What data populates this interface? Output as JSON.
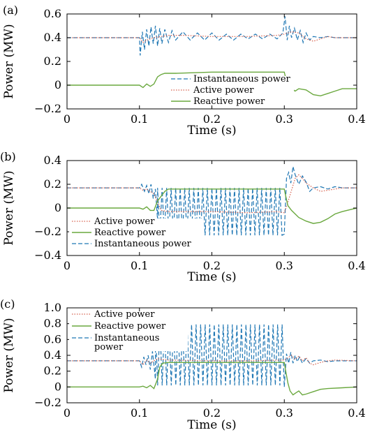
{
  "colors": {
    "instantaneous": "#1f77b4",
    "active": "#d6604d",
    "reactive": "#6aa83e",
    "axis": "#000000"
  },
  "chart_data": [
    {
      "panel_label": "(a)",
      "type": "line",
      "xlabel": "Time (s)",
      "ylabel": "Power (MW)",
      "xlim": [
        0,
        0.4
      ],
      "ylim": [
        -0.2,
        0.6
      ],
      "xticks": [
        0,
        0.1,
        0.2,
        0.3,
        0.4
      ],
      "xtick_labels": [
        "0",
        "0.1",
        "0.2",
        "0.3",
        "0.4"
      ],
      "yticks": [
        -0.2,
        0,
        0.2,
        0.4,
        0.6
      ],
      "ytick_labels": [
        "−0.2",
        "0",
        "0.2",
        "0.4",
        "0.6"
      ],
      "grid": false,
      "legend_position": "center",
      "legend": [
        "Instantaneous power",
        "Active power",
        "Reactive power"
      ],
      "series": [
        {
          "name": "Instantaneous power",
          "style": "dashed",
          "x": [
            0,
            0.1,
            0.101,
            0.104,
            0.107,
            0.11,
            0.113,
            0.116,
            0.119,
            0.122,
            0.125,
            0.128,
            0.131,
            0.135,
            0.14,
            0.145,
            0.15,
            0.16,
            0.17,
            0.18,
            0.19,
            0.2,
            0.21,
            0.22,
            0.23,
            0.24,
            0.25,
            0.26,
            0.27,
            0.28,
            0.29,
            0.298,
            0.301,
            0.304,
            0.307,
            0.31,
            0.314,
            0.318,
            0.322,
            0.326,
            0.33,
            0.335,
            0.34,
            0.35,
            0.36,
            0.37,
            0.4
          ],
          "y": [
            0.4,
            0.4,
            0.25,
            0.45,
            0.3,
            0.47,
            0.33,
            0.49,
            0.35,
            0.5,
            0.33,
            0.48,
            0.35,
            0.47,
            0.36,
            0.46,
            0.38,
            0.45,
            0.38,
            0.44,
            0.38,
            0.44,
            0.38,
            0.43,
            0.38,
            0.43,
            0.39,
            0.43,
            0.39,
            0.43,
            0.39,
            0.44,
            0.58,
            0.38,
            0.5,
            0.4,
            0.48,
            0.38,
            0.46,
            0.36,
            0.44,
            0.38,
            0.41,
            0.4,
            0.41,
            0.4,
            0.4
          ]
        },
        {
          "name": "Active power",
          "style": "dotted",
          "x": [
            0,
            0.1,
            0.105,
            0.11,
            0.115,
            0.12,
            0.13,
            0.14,
            0.16,
            0.2,
            0.25,
            0.29,
            0.3,
            0.31,
            0.32,
            0.33,
            0.34,
            0.35,
            0.36,
            0.37,
            0.4
          ],
          "y": [
            0.4,
            0.4,
            0.36,
            0.38,
            0.39,
            0.4,
            0.41,
            0.42,
            0.42,
            0.41,
            0.41,
            0.42,
            0.43,
            0.45,
            0.44,
            0.39,
            0.37,
            0.39,
            0.41,
            0.4,
            0.4
          ]
        },
        {
          "name": "Reactive power",
          "style": "solid",
          "x": [
            0,
            0.1,
            0.105,
            0.11,
            0.115,
            0.12,
            0.125,
            0.13,
            0.135,
            0.15,
            0.2,
            0.25,
            0.3,
            0.302,
            0.305,
            0.31,
            0.315,
            0.32,
            0.33,
            0.34,
            0.35,
            0.36,
            0.37,
            0.38,
            0.4
          ],
          "y": [
            0,
            0,
            -0.02,
            0.01,
            -0.01,
            0.01,
            0.07,
            0.09,
            0.1,
            0.1,
            0.11,
            0.11,
            0.11,
            0.06,
            0,
            -0.03,
            -0.05,
            -0.03,
            -0.04,
            -0.08,
            -0.09,
            -0.07,
            -0.05,
            -0.03,
            -0.03
          ]
        }
      ]
    },
    {
      "panel_label": "(b)",
      "type": "line",
      "xlabel": "Time (s)",
      "ylabel": "Power (MW)",
      "xlim": [
        0,
        0.4
      ],
      "ylim": [
        -0.4,
        0.4
      ],
      "xticks": [
        0,
        0.1,
        0.2,
        0.3,
        0.4
      ],
      "xtick_labels": [
        "0",
        "0.1",
        "0.2",
        "0.3",
        "0.4"
      ],
      "yticks": [
        -0.4,
        -0.2,
        0,
        0.2,
        0.4
      ],
      "ytick_labels": [
        "−0.4",
        "−0.2",
        "0",
        "0.2",
        "0.4"
      ],
      "grid": false,
      "legend_position": "bottom-left",
      "legend": [
        "Active power",
        "Reactive power",
        "Instantaneous power"
      ],
      "series": [
        {
          "name": "Instantaneous power",
          "style": "dashed",
          "x": [
            0,
            0.1,
            0.103,
            0.107,
            0.11,
            0.113,
            0.116,
            0.119,
            0.122,
            0.125,
            0.3,
            0.303,
            0.306,
            0.309,
            0.312,
            0.315,
            0.32,
            0.325,
            0.33,
            0.335,
            0.34,
            0.35,
            0.36,
            0.37,
            0.38,
            0.4
          ],
          "y": [
            0.17,
            0.17,
            0.2,
            0.14,
            0.19,
            0.12,
            0.2,
            0.08,
            0.16,
            -0.1,
            -0.22,
            0.25,
            0.3,
            0.21,
            0.35,
            0.28,
            0.2,
            0.27,
            0.22,
            0.14,
            0.17,
            0.18,
            0.16,
            0.18,
            0.17,
            0.17
          ],
          "oscillation": {
            "start": 0.125,
            "end": 0.3,
            "period": 0.00625,
            "high": 0.17,
            "low": -0.23
          }
        },
        {
          "name": "Active power",
          "style": "dotted",
          "x": [
            0,
            0.1,
            0.105,
            0.11,
            0.115,
            0.12,
            0.125,
            0.13,
            0.14,
            0.16,
            0.2,
            0.25,
            0.29,
            0.3,
            0.305,
            0.31,
            0.315,
            0.32,
            0.325,
            0.33,
            0.34,
            0.35,
            0.36,
            0.38,
            0.4
          ],
          "y": [
            0.17,
            0.17,
            0.15,
            0.16,
            0.14,
            0.12,
            0.05,
            -0.02,
            -0.03,
            -0.03,
            -0.03,
            -0.04,
            -0.03,
            -0.04,
            0.05,
            0.15,
            0.25,
            0.28,
            0.25,
            0.21,
            0.17,
            0.14,
            0.15,
            0.17,
            0.17
          ]
        },
        {
          "name": "Reactive power",
          "style": "solid",
          "x": [
            0,
            0.1,
            0.105,
            0.11,
            0.115,
            0.12,
            0.125,
            0.13,
            0.135,
            0.14,
            0.15,
            0.2,
            0.25,
            0.3,
            0.302,
            0.305,
            0.31,
            0.315,
            0.32,
            0.33,
            0.34,
            0.35,
            0.36,
            0.37,
            0.38,
            0.4
          ],
          "y": [
            0,
            0,
            -0.01,
            0.01,
            -0.02,
            -0.02,
            0.06,
            0.1,
            0.14,
            0.16,
            0.16,
            0.16,
            0.16,
            0.16,
            0.1,
            0.02,
            -0.02,
            -0.05,
            -0.08,
            -0.11,
            -0.13,
            -0.12,
            -0.09,
            -0.05,
            -0.03,
            0
          ]
        }
      ]
    },
    {
      "panel_label": "(c)",
      "type": "line",
      "xlabel": "Time (s)",
      "ylabel": "Power (MW)",
      "xlim": [
        0,
        0.4
      ],
      "ylim": [
        -0.2,
        1.0
      ],
      "xticks": [
        0,
        0.1,
        0.2,
        0.3,
        0.4
      ],
      "xtick_labels": [
        "0",
        "0.1",
        "0.2",
        "0.3",
        "0.4"
      ],
      "yticks": [
        -0.2,
        0,
        0.2,
        0.4,
        0.6,
        0.8,
        1.0
      ],
      "ytick_labels": [
        "−0.2",
        "0",
        "0.2",
        "0.4",
        "0.6",
        "0.8",
        "1.0"
      ],
      "grid": false,
      "legend_position": "top-left",
      "legend": [
        "Active power",
        "Reactive power",
        "Instantaneous",
        "power"
      ],
      "series": [
        {
          "name": "Instantaneous power",
          "style": "dashed",
          "x": [
            0,
            0.1,
            0.103,
            0.106,
            0.109,
            0.112,
            0.115,
            0.118,
            0.122,
            0.3,
            0.303,
            0.306,
            0.309,
            0.312,
            0.315,
            0.318,
            0.321,
            0.325,
            0.33,
            0.335,
            0.34,
            0.35,
            0.36,
            0.37,
            0.4
          ],
          "y": [
            0.33,
            0.33,
            0.25,
            0.38,
            0.28,
            0.4,
            0.22,
            0.45,
            0.1,
            0.0,
            0.42,
            0.3,
            0.44,
            0.3,
            0.4,
            0.32,
            0.38,
            0.3,
            0.36,
            0.3,
            0.33,
            0.34,
            0.32,
            0.33,
            0.33
          ],
          "oscillation": {
            "start": 0.122,
            "end": 0.3,
            "period": 0.00625,
            "high": 0.79,
            "low": 0.02
          }
        },
        {
          "name": "Active power",
          "style": "dotted",
          "x": [
            0,
            0.1,
            0.105,
            0.11,
            0.115,
            0.12,
            0.125,
            0.13,
            0.14,
            0.2,
            0.25,
            0.3,
            0.305,
            0.31,
            0.315,
            0.32,
            0.325,
            0.33,
            0.335,
            0.34,
            0.35,
            0.36,
            0.37,
            0.4
          ],
          "y": [
            0.33,
            0.33,
            0.28,
            0.34,
            0.3,
            0.33,
            0.36,
            0.35,
            0.34,
            0.33,
            0.33,
            0.34,
            0.37,
            0.4,
            0.35,
            0.39,
            0.33,
            0.37,
            0.3,
            0.28,
            0.31,
            0.33,
            0.34,
            0.33
          ]
        },
        {
          "name": "Reactive power",
          "style": "solid",
          "x": [
            0,
            0.1,
            0.105,
            0.11,
            0.115,
            0.12,
            0.125,
            0.128,
            0.132,
            0.14,
            0.2,
            0.25,
            0.3,
            0.302,
            0.305,
            0.308,
            0.312,
            0.315,
            0.32,
            0.325,
            0.33,
            0.34,
            0.35,
            0.36,
            0.38,
            0.4
          ],
          "y": [
            0,
            0,
            0.01,
            -0.01,
            0.02,
            -0.02,
            0.1,
            0.25,
            0.3,
            0.31,
            0.31,
            0.31,
            0.31,
            0.2,
            0.05,
            -0.05,
            -0.1,
            -0.08,
            -0.05,
            -0.1,
            -0.09,
            -0.06,
            -0.03,
            -0.02,
            -0.01,
            0
          ]
        }
      ]
    }
  ]
}
